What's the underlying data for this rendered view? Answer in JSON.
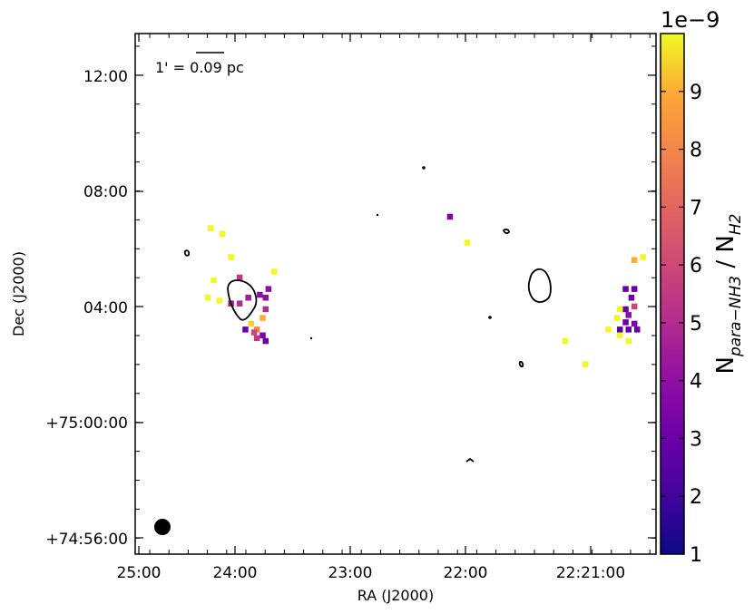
{
  "chart_data": {
    "type": "heatmap",
    "xlabel": "RA (J2000)",
    "ylabel": "Dec (J2000)",
    "x_ticks": [
      "25:00",
      "24:00",
      "23:00",
      "22:00",
      "22:21:00"
    ],
    "y_ticks": [
      "12:00",
      "08:00",
      "04:00",
      "+75:00:00",
      "+74:56:00"
    ],
    "scale_bar_label": "1' = 0.09 pc",
    "colorbar": {
      "title": "N",
      "title_sub1": "para−NH3",
      "title_mid": " / N",
      "title_sub2": "H2",
      "exponent": "1e−9",
      "ticks": [
        "1",
        "2",
        "3",
        "4",
        "5",
        "6",
        "7",
        "8",
        "9"
      ],
      "range": [
        1,
        10
      ],
      "colormap": "plasma"
    },
    "grid": false,
    "beam": "filled-circle-bottom-left",
    "pixel_values": {
      "x_units": "arcmin RA offset from 25:00",
      "y_units": "arcmin Dec offset from +74:56:00",
      "points": [
        [
          1.45,
          10.5,
          10
        ],
        [
          1.25,
          10.7,
          10
        ],
        [
          1.6,
          9.7,
          10
        ],
        [
          1.75,
          9.0,
          5.5
        ],
        [
          1.3,
          8.9,
          10
        ],
        [
          1.2,
          8.3,
          10
        ],
        [
          1.4,
          8.2,
          10
        ],
        [
          1.6,
          8.1,
          4.5
        ],
        [
          1.75,
          8.1,
          5.0
        ],
        [
          1.9,
          8.3,
          4.5
        ],
        [
          2.1,
          8.4,
          4.0
        ],
        [
          2.25,
          8.6,
          4.0
        ],
        [
          2.2,
          8.3,
          4.0
        ],
        [
          2.2,
          7.9,
          5.0
        ],
        [
          2.15,
          7.6,
          9.0
        ],
        [
          1.95,
          7.4,
          9.5
        ],
        [
          2.05,
          7.2,
          8.0
        ],
        [
          1.85,
          7.2,
          3.0
        ],
        [
          2.0,
          7.1,
          6.0
        ],
        [
          2.15,
          7.0,
          3.5
        ],
        [
          2.2,
          6.8,
          3.0
        ],
        [
          2.05,
          6.9,
          5.5
        ],
        [
          2.35,
          9.2,
          10
        ],
        [
          5.4,
          11.1,
          3.5
        ],
        [
          5.7,
          10.2,
          10
        ],
        [
          7.4,
          6.8,
          10
        ],
        [
          8.15,
          7.2,
          10
        ],
        [
          8.3,
          7.6,
          10
        ],
        [
          8.45,
          7.9,
          3.0
        ],
        [
          8.55,
          8.3,
          3.0
        ],
        [
          8.6,
          8.6,
          3.0
        ],
        [
          8.45,
          8.6,
          3.0
        ],
        [
          8.6,
          8.0,
          6.0
        ],
        [
          8.5,
          7.7,
          4.0
        ],
        [
          8.35,
          7.9,
          10
        ],
        [
          8.45,
          7.45,
          3.0
        ],
        [
          8.6,
          7.4,
          3.5
        ],
        [
          8.35,
          7.2,
          2.5
        ],
        [
          8.5,
          7.2,
          3.0
        ],
        [
          8.35,
          7.0,
          10
        ],
        [
          8.5,
          6.8,
          10
        ],
        [
          8.75,
          9.7,
          10
        ],
        [
          8.6,
          9.6,
          9.0
        ],
        [
          8.65,
          7.2,
          3.0
        ],
        [
          7.75,
          6.0,
          10
        ]
      ]
    }
  }
}
